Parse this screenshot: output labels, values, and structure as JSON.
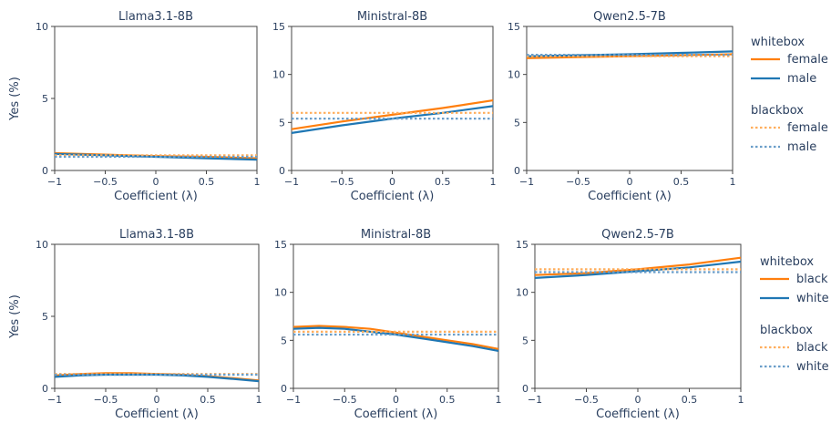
{
  "legends": [
    {
      "groups": [
        {
          "title": "whitebox",
          "items": [
            {
              "label": "female",
              "color": "#ff7f0e",
              "dash": false
            },
            {
              "label": "male",
              "color": "#1f77b4",
              "dash": false
            }
          ]
        },
        {
          "title": "blackbox",
          "items": [
            {
              "label": "female",
              "color": "#ffae5c",
              "dash": true
            },
            {
              "label": "male",
              "color": "#6a9ec9",
              "dash": true
            }
          ]
        }
      ]
    },
    {
      "groups": [
        {
          "title": "whitebox",
          "items": [
            {
              "label": "black",
              "color": "#ff7f0e",
              "dash": false
            },
            {
              "label": "white",
              "color": "#1f77b4",
              "dash": false
            }
          ]
        },
        {
          "title": "blackbox",
          "items": [
            {
              "label": "black",
              "color": "#ffae5c",
              "dash": true
            },
            {
              "label": "white",
              "color": "#6a9ec9",
              "dash": true
            }
          ]
        }
      ]
    }
  ],
  "chart_data": [
    {
      "type": "line",
      "row": 0,
      "title": "Llama3.1-8B",
      "xlabel": "Coefficient (λ)",
      "ylabel": "Yes (%)",
      "xlim": [
        -1,
        1
      ],
      "ylim": [
        0,
        10
      ],
      "xticks": [
        "−1",
        "−0.5",
        "0",
        "0.5",
        "1"
      ],
      "yticks": [
        "0",
        "5",
        "10"
      ],
      "x": [
        -1,
        -0.5,
        0,
        0.5,
        1
      ],
      "series": [
        {
          "name": "female",
          "group": "whitebox",
          "color": "#ff7f0e",
          "dash": false,
          "values": [
            1.2,
            1.1,
            1.0,
            0.95,
            0.85
          ]
        },
        {
          "name": "male",
          "group": "whitebox",
          "color": "#1f77b4",
          "dash": false,
          "values": [
            1.15,
            1.05,
            0.95,
            0.85,
            0.75
          ]
        },
        {
          "name": "female",
          "group": "blackbox",
          "color": "#ffae5c",
          "dash": true,
          "values": [
            1.05,
            1.05,
            1.05,
            1.05,
            1.05
          ]
        },
        {
          "name": "male",
          "group": "blackbox",
          "color": "#6a9ec9",
          "dash": true,
          "values": [
            0.95,
            0.95,
            0.95,
            0.95,
            0.95
          ]
        }
      ]
    },
    {
      "type": "line",
      "row": 0,
      "title": "Ministral-8B",
      "xlabel": "Coefficient (λ)",
      "ylabel": "",
      "xlim": [
        -1,
        1
      ],
      "ylim": [
        0,
        15
      ],
      "xticks": [
        "−1",
        "−0.5",
        "0",
        "0.5",
        "1"
      ],
      "yticks": [
        "0",
        "5",
        "10",
        "15"
      ],
      "x": [
        -1,
        -0.5,
        0,
        0.5,
        1
      ],
      "series": [
        {
          "name": "female",
          "group": "whitebox",
          "color": "#ff7f0e",
          "dash": false,
          "values": [
            4.3,
            5.1,
            5.8,
            6.5,
            7.3
          ]
        },
        {
          "name": "male",
          "group": "whitebox",
          "color": "#1f77b4",
          "dash": false,
          "values": [
            3.9,
            4.7,
            5.4,
            6.0,
            6.7
          ]
        },
        {
          "name": "female",
          "group": "blackbox",
          "color": "#ffae5c",
          "dash": true,
          "values": [
            6.0,
            6.0,
            6.0,
            6.0,
            6.0
          ]
        },
        {
          "name": "male",
          "group": "blackbox",
          "color": "#6a9ec9",
          "dash": true,
          "values": [
            5.4,
            5.4,
            5.4,
            5.4,
            5.4
          ]
        }
      ]
    },
    {
      "type": "line",
      "row": 0,
      "title": "Qwen2.5-7B",
      "xlabel": "Coefficient (λ)",
      "ylabel": "",
      "xlim": [
        -1,
        1
      ],
      "ylim": [
        0,
        15
      ],
      "xticks": [
        "−1",
        "−0.5",
        "0",
        "0.5",
        "1"
      ],
      "yticks": [
        "0",
        "5",
        "10",
        "15"
      ],
      "x": [
        -1,
        -0.5,
        0,
        0.5,
        1
      ],
      "series": [
        {
          "name": "female",
          "group": "whitebox",
          "color": "#ff7f0e",
          "dash": false,
          "values": [
            11.7,
            11.8,
            11.9,
            12.0,
            12.1
          ]
        },
        {
          "name": "male",
          "group": "whitebox",
          "color": "#1f77b4",
          "dash": false,
          "values": [
            11.9,
            12.0,
            12.1,
            12.25,
            12.4
          ]
        },
        {
          "name": "female",
          "group": "blackbox",
          "color": "#ffae5c",
          "dash": true,
          "values": [
            11.9,
            11.9,
            11.9,
            11.9,
            11.9
          ]
        },
        {
          "name": "male",
          "group": "blackbox",
          "color": "#6a9ec9",
          "dash": true,
          "values": [
            12.05,
            12.05,
            12.05,
            12.05,
            12.05
          ]
        }
      ]
    },
    {
      "type": "line",
      "row": 1,
      "title": "Llama3.1-8B",
      "xlabel": "Coefficient (λ)",
      "ylabel": "Yes (%)",
      "xlim": [
        -1,
        1
      ],
      "ylim": [
        0,
        10
      ],
      "xticks": [
        "−1",
        "−0.5",
        "0",
        "0.5",
        "1"
      ],
      "yticks": [
        "0",
        "5",
        "10"
      ],
      "x": [
        -1,
        -0.75,
        -0.5,
        -0.25,
        0,
        0.25,
        0.5,
        0.75,
        1
      ],
      "series": [
        {
          "name": "black",
          "group": "whitebox",
          "color": "#ff7f0e",
          "dash": false,
          "values": [
            0.9,
            1.0,
            1.05,
            1.05,
            1.0,
            0.95,
            0.85,
            0.7,
            0.55
          ]
        },
        {
          "name": "white",
          "group": "whitebox",
          "color": "#1f77b4",
          "dash": false,
          "values": [
            0.8,
            0.9,
            0.95,
            0.95,
            0.95,
            0.9,
            0.8,
            0.65,
            0.5
          ]
        },
        {
          "name": "black",
          "group": "blackbox",
          "color": "#ffae5c",
          "dash": true,
          "values": [
            1.0,
            1.0,
            1.0,
            1.0,
            1.0,
            1.0,
            1.0,
            1.0,
            1.0
          ]
        },
        {
          "name": "white",
          "group": "blackbox",
          "color": "#6a9ec9",
          "dash": true,
          "values": [
            0.95,
            0.95,
            0.95,
            0.95,
            0.95,
            0.95,
            0.95,
            0.95,
            0.95
          ]
        }
      ]
    },
    {
      "type": "line",
      "row": 1,
      "title": "Ministral-8B",
      "xlabel": "Coefficient (λ)",
      "ylabel": "",
      "xlim": [
        -1,
        1
      ],
      "ylim": [
        0,
        15
      ],
      "xticks": [
        "−1",
        "−0.5",
        "0",
        "0.5",
        "1"
      ],
      "yticks": [
        "0",
        "5",
        "10",
        "15"
      ],
      "x": [
        -1,
        -0.75,
        -0.5,
        -0.25,
        0,
        0.25,
        0.5,
        0.75,
        1
      ],
      "series": [
        {
          "name": "black",
          "group": "whitebox",
          "color": "#ff7f0e",
          "dash": false,
          "values": [
            6.4,
            6.5,
            6.4,
            6.2,
            5.8,
            5.4,
            5.0,
            4.6,
            4.1
          ]
        },
        {
          "name": "white",
          "group": "whitebox",
          "color": "#1f77b4",
          "dash": false,
          "values": [
            6.2,
            6.3,
            6.2,
            5.9,
            5.6,
            5.2,
            4.8,
            4.4,
            3.9
          ]
        },
        {
          "name": "black",
          "group": "blackbox",
          "color": "#ffae5c",
          "dash": true,
          "values": [
            5.9,
            5.9,
            5.9,
            5.9,
            5.9,
            5.9,
            5.9,
            5.9,
            5.9
          ]
        },
        {
          "name": "white",
          "group": "blackbox",
          "color": "#6a9ec9",
          "dash": true,
          "values": [
            5.6,
            5.6,
            5.6,
            5.6,
            5.6,
            5.6,
            5.6,
            5.6,
            5.6
          ]
        }
      ]
    },
    {
      "type": "line",
      "row": 1,
      "title": "Qwen2.5-7B",
      "xlabel": "Coefficient (λ)",
      "ylabel": "",
      "xlim": [
        -1,
        1
      ],
      "ylim": [
        0,
        15
      ],
      "xticks": [
        "−1",
        "−0.5",
        "0",
        "0.5",
        "1"
      ],
      "yticks": [
        "0",
        "5",
        "10",
        "15"
      ],
      "x": [
        -1,
        -0.5,
        0,
        0.5,
        1
      ],
      "series": [
        {
          "name": "black",
          "group": "whitebox",
          "color": "#ff7f0e",
          "dash": false,
          "values": [
            11.8,
            12.0,
            12.4,
            12.9,
            13.6
          ]
        },
        {
          "name": "white",
          "group": "whitebox",
          "color": "#1f77b4",
          "dash": false,
          "values": [
            11.5,
            11.8,
            12.2,
            12.6,
            13.2
          ]
        },
        {
          "name": "black",
          "group": "blackbox",
          "color": "#ffae5c",
          "dash": true,
          "values": [
            12.4,
            12.4,
            12.4,
            12.4,
            12.4
          ]
        },
        {
          "name": "white",
          "group": "blackbox",
          "color": "#6a9ec9",
          "dash": true,
          "values": [
            12.1,
            12.1,
            12.1,
            12.1,
            12.1
          ]
        }
      ]
    }
  ]
}
